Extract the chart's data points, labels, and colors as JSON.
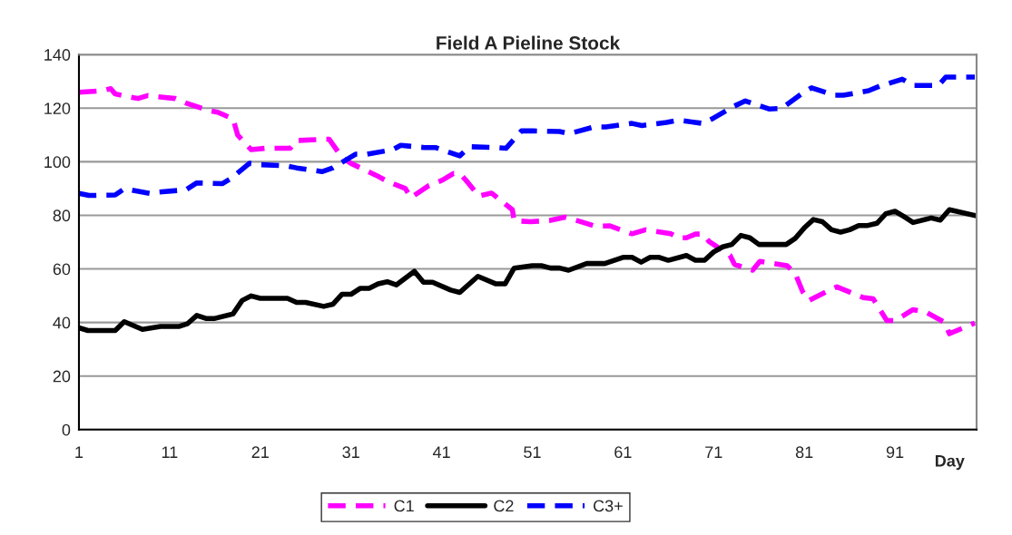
{
  "chart_data": {
    "type": "line",
    "title": "Field A Pieline Stock",
    "xlabel": "Day",
    "xlim": [
      1,
      100
    ],
    "xticks": [
      1,
      11,
      21,
      31,
      41,
      51,
      61,
      71,
      81,
      91
    ],
    "ylim": [
      0,
      140
    ],
    "yticks": [
      0,
      20,
      40,
      60,
      80,
      100,
      120,
      140
    ],
    "grid": "y",
    "legend": "bottom",
    "series": [
      {
        "name": "C1",
        "color": "#ff00ff",
        "line_style": "dashed",
        "x": [
          1,
          3.6,
          4.5,
          5,
          7.5,
          8.6,
          11.6,
          12.8,
          15.3,
          16.3,
          18,
          18.5,
          20,
          21.5,
          24.3,
          25,
          28,
          28.6,
          30,
          31,
          33.8,
          35,
          37,
          37.6,
          39.6,
          41,
          42.3,
          43,
          43.6,
          45.1,
          46.5,
          48.8,
          49,
          50.8,
          53,
          54.6,
          55.3,
          58,
          59.5,
          62,
          63.5,
          66.3,
          67.1,
          68,
          69,
          69.8,
          70.5,
          72.8,
          73.3,
          75.3,
          76.1,
          79.1,
          80,
          80.8,
          81.5,
          83.5,
          84.6,
          87.5,
          88.6,
          90.1,
          91,
          93,
          94.5,
          96.5,
          97,
          99.8
        ],
        "values": [
          125.9,
          126.5,
          127.3,
          125.3,
          123.6,
          124.7,
          123.6,
          121.9,
          119.1,
          118.5,
          116,
          110,
          104.5,
          105,
          105,
          107.9,
          108.4,
          108.4,
          101.7,
          99.4,
          94.9,
          92.7,
          90,
          86.6,
          91.1,
          93,
          95.6,
          95.6,
          93.4,
          87.2,
          88.3,
          82.1,
          78,
          77.6,
          78.1,
          79.3,
          78.7,
          75.9,
          76.1,
          73.1,
          74.6,
          73.1,
          71.6,
          71.6,
          73,
          73,
          70.2,
          65.1,
          61.7,
          59.5,
          62.8,
          61.2,
          58.3,
          51.6,
          48.2,
          51.6,
          53.3,
          49.3,
          48.8,
          40.7,
          40.7,
          44.8,
          43.7,
          40,
          35.8,
          39.8
        ]
      },
      {
        "name": "C2",
        "color": "#000000",
        "line_style": "solid",
        "x": [
          1,
          2,
          5,
          6,
          8,
          10,
          12,
          13,
          14,
          15,
          16,
          18,
          19,
          20,
          21,
          24,
          25,
          26,
          28,
          29,
          30,
          31,
          32,
          33,
          34,
          35,
          36,
          38,
          39,
          40,
          42,
          43,
          45,
          47,
          48,
          49,
          51,
          52,
          53,
          54,
          55,
          57,
          59,
          61,
          62,
          63,
          64,
          65,
          66,
          68,
          69,
          70,
          71,
          72,
          73,
          74,
          75,
          76,
          79,
          80,
          81,
          82,
          83,
          84,
          85,
          86,
          87,
          88,
          89,
          90,
          91,
          92,
          93,
          95,
          96,
          97,
          100
        ],
        "values": [
          38,
          37,
          37,
          40.3,
          37.4,
          38.5,
          38.5,
          39.6,
          42.6,
          41.5,
          41.5,
          43.2,
          48.2,
          49.9,
          49,
          49,
          47.5,
          47.5,
          46,
          46.8,
          50.5,
          50.5,
          52.7,
          52.7,
          54.4,
          55.2,
          54,
          59.1,
          55,
          55,
          52.1,
          51.2,
          57.2,
          54.4,
          54.4,
          60.3,
          61.2,
          61.2,
          60.3,
          60.3,
          59.5,
          62,
          62,
          64.3,
          64.3,
          62.5,
          64.3,
          64.3,
          63.2,
          65,
          63.2,
          63.2,
          66.3,
          68.2,
          69.1,
          72.5,
          71.6,
          69.1,
          69.1,
          71.4,
          75.3,
          78.4,
          77.6,
          74.6,
          73.7,
          74.6,
          76.2,
          76.2,
          77,
          80.6,
          81.5,
          79.5,
          77.3,
          79,
          78.2,
          82.1,
          79.8
        ]
      },
      {
        "name": "C3+",
        "color": "#0000ff",
        "line_style": "dashed",
        "x": [
          1,
          2.1,
          5,
          6,
          8.8,
          9.8,
          12.8,
          14,
          16.8,
          17.8,
          19.8,
          21,
          23.8,
          25,
          27.8,
          29,
          31.5,
          32.8,
          35.6,
          36.5,
          39.1,
          40.3,
          43,
          44.1,
          46.8,
          48.1,
          49.8,
          51.1,
          54,
          55.1,
          57.8,
          59.1,
          62,
          63.1,
          65.8,
          67.1,
          69.8,
          71,
          73.3,
          74.5,
          77.1,
          78.5,
          80.6,
          81.8,
          84.3,
          85.3,
          88.1,
          89.3,
          91.8,
          93,
          95.8,
          96.6,
          99.8
        ],
        "values": [
          88.2,
          87.4,
          87.6,
          89.9,
          88.2,
          88.7,
          89.5,
          92.1,
          91.8,
          93.8,
          99.4,
          98.9,
          98.5,
          97.7,
          96.3,
          97.7,
          102.8,
          102.8,
          104.5,
          106.1,
          105.3,
          105.3,
          102.2,
          105.6,
          105.3,
          105,
          111.5,
          111.5,
          111.3,
          110.5,
          113,
          113,
          114.3,
          113.5,
          114.7,
          115.5,
          114.3,
          116.3,
          120.8,
          122.7,
          119.7,
          119.9,
          125.1,
          127.6,
          124.8,
          124.8,
          126.5,
          128.2,
          130.8,
          128.5,
          128.5,
          131.6,
          131.6
        ]
      }
    ]
  }
}
